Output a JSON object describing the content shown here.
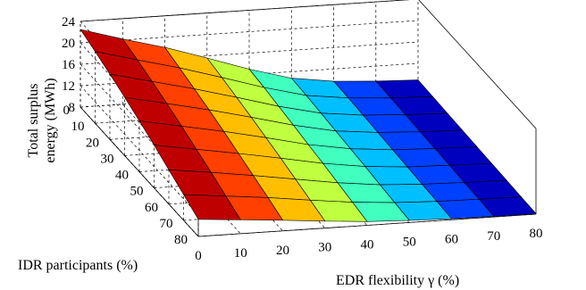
{
  "chart_data": {
    "type": "surface",
    "title": "",
    "xlabel": "EDR flexibility γ (%)",
    "ylabel": "IDR participants (%)",
    "zlabel_line1": "Total surplus",
    "zlabel_line2": "energy (MWh)",
    "x_ticks": [
      "0",
      "10",
      "20",
      "30",
      "40",
      "50",
      "60",
      "70",
      "80"
    ],
    "y_ticks": [
      "0",
      "10",
      "20",
      "30",
      "40",
      "50",
      "60",
      "70",
      "80"
    ],
    "z_ticks": [
      "8",
      "12",
      "16",
      "20",
      "24"
    ],
    "xlim": [
      0,
      80
    ],
    "ylim": [
      0,
      80
    ],
    "zlim": [
      8,
      24
    ],
    "colormap": "jet",
    "x": [
      0,
      10,
      20,
      30,
      40,
      50,
      60,
      70,
      80
    ],
    "y": [
      0,
      10,
      20,
      30,
      40,
      50,
      60,
      70,
      80
    ],
    "z_rows_by_y": [
      [
        22.5,
        20.2,
        18.1,
        15.6,
        13.0,
        10.8,
        9.7,
        9.2,
        8.9
      ],
      [
        21.4,
        19.3,
        17.3,
        15.0,
        12.6,
        10.6,
        9.6,
        9.1,
        8.8
      ],
      [
        20.2,
        18.3,
        16.4,
        14.3,
        12.1,
        10.3,
        9.4,
        9.0,
        8.7
      ],
      [
        18.9,
        17.2,
        15.5,
        13.6,
        11.6,
        10.0,
        9.2,
        8.8,
        8.6
      ],
      [
        17.5,
        16.0,
        14.5,
        12.8,
        11.0,
        9.7,
        9.0,
        8.7,
        8.5
      ],
      [
        16.0,
        14.7,
        13.4,
        12.0,
        10.5,
        9.4,
        8.8,
        8.6,
        8.4
      ],
      [
        14.4,
        13.4,
        12.3,
        11.1,
        9.9,
        9.0,
        8.6,
        8.4,
        8.3
      ],
      [
        12.8,
        12.0,
        11.2,
        10.2,
        9.3,
        8.7,
        8.4,
        8.3,
        8.2
      ],
      [
        11.2,
        10.6,
        10.0,
        9.3,
        8.7,
        8.4,
        8.2,
        8.1,
        8.1
      ]
    ]
  }
}
